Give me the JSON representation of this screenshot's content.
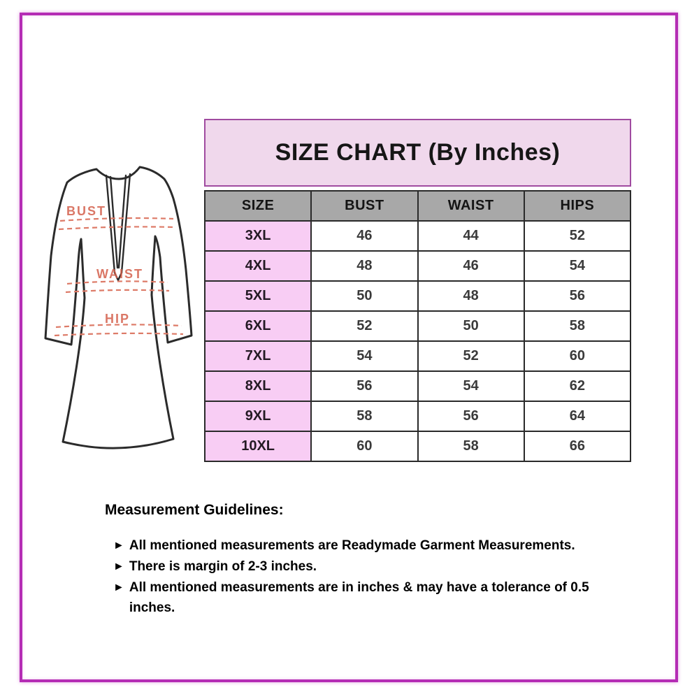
{
  "chart_data": {
    "type": "table",
    "title": "SIZE CHART (By Inches)",
    "units": "inches",
    "columns": [
      "SIZE",
      "BUST",
      "WAIST",
      "HIPS"
    ],
    "rows": [
      [
        "3XL",
        46,
        44,
        52
      ],
      [
        "4XL",
        48,
        46,
        54
      ],
      [
        "5XL",
        50,
        48,
        56
      ],
      [
        "6XL",
        52,
        50,
        58
      ],
      [
        "7XL",
        54,
        52,
        60
      ],
      [
        "8XL",
        56,
        54,
        62
      ],
      [
        "9XL",
        58,
        56,
        64
      ],
      [
        "10XL",
        60,
        58,
        66
      ]
    ]
  },
  "diagram": {
    "bust_label": "BUST",
    "waist_label": "WAIST",
    "hip_label": "HIP"
  },
  "guidelines": {
    "heading": "Measurement Guidelines:",
    "bullet_glyph": "►",
    "items": [
      "All mentioned measurements are Readymade Garment Measurements.",
      "There is margin of 2-3 inches.",
      "All mentioned measurements are in inches & may have a tolerance of 0.5 inches."
    ]
  },
  "colors": {
    "frame_border": "#b42cb4",
    "band_bg": "#f0d8ec",
    "band_border": "#a04ba0",
    "header_bg": "#a8a8a8",
    "size_cell_bg": "#f8cdf4",
    "table_border": "#2a2a2a",
    "sketch_outline": "#2b2b2b",
    "measure_line": "#dd7b68",
    "measure_label": "#d4604c"
  }
}
